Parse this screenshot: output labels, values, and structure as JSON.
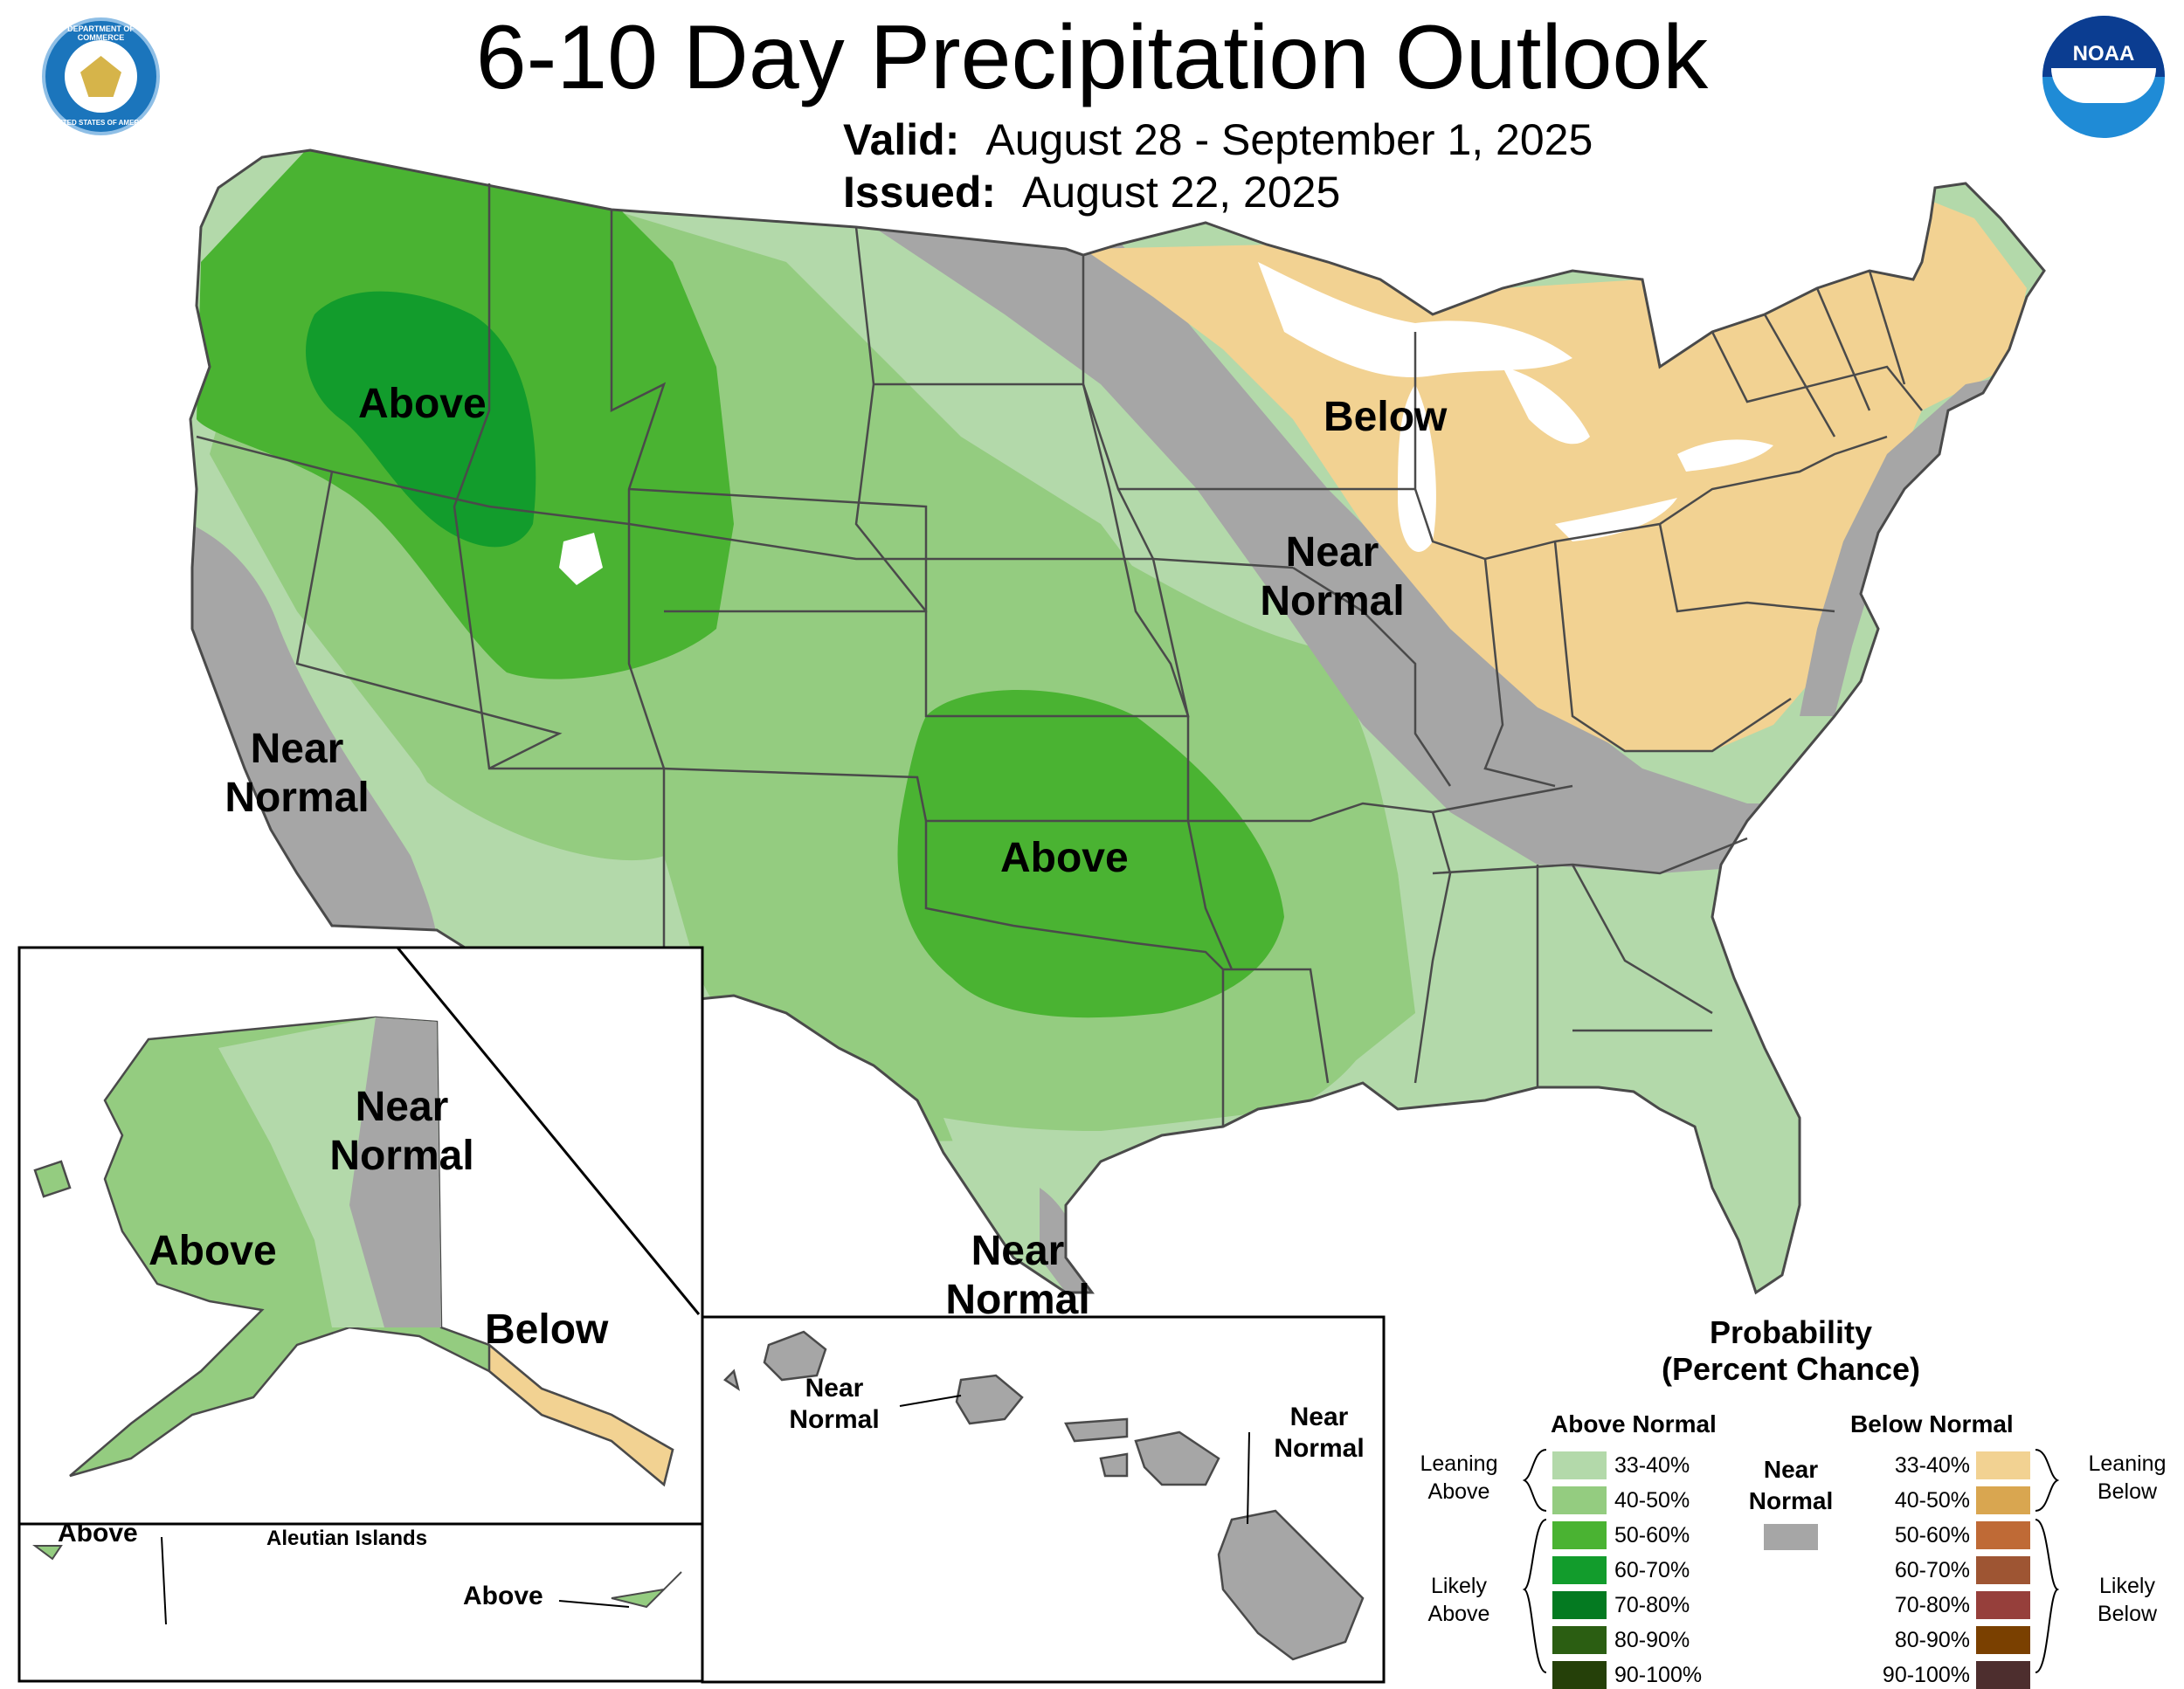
{
  "header": {
    "title": "6-10 Day Precipitation Outlook",
    "valid_label": "Valid:",
    "valid_value": "August 28 - September 1, 2025",
    "issued_label": "Issued:",
    "issued_value": "August 22, 2025"
  },
  "logos": {
    "commerce_icon": "department-of-commerce-seal",
    "commerce_text_top": "DEPARTMENT OF COMMERCE",
    "commerce_text_bottom": "UNITED STATES OF AMERICA",
    "noaa_icon": "noaa-logo",
    "noaa_text": "NOAA"
  },
  "labels": {
    "conus": {
      "above_nw": "Above",
      "above_south": "Above",
      "below_ne": "Below",
      "near_normal_mid_1": "Near",
      "near_normal_mid_2": "Normal",
      "near_normal_ca_1": "Near",
      "near_normal_ca_2": "Normal",
      "near_normal_tx_1": "Near",
      "near_normal_tx_2": "Normal"
    },
    "alaska": {
      "above": "Above",
      "near_normal_1": "Near",
      "near_normal_2": "Normal",
      "below": "Below"
    },
    "aleutians": {
      "title": "Aleutian Islands",
      "above_west": "Above",
      "above_east": "Above"
    },
    "hawaii": {
      "near_normal_w_1": "Near",
      "near_normal_w_2": "Normal",
      "near_normal_e_1": "Near",
      "near_normal_e_2": "Normal"
    }
  },
  "legend": {
    "title_1": "Probability",
    "title_2": "(Percent Chance)",
    "above_header": "Above Normal",
    "below_header": "Below Normal",
    "near_1": "Near",
    "near_2": "Normal",
    "near_color": "#a6a6a6",
    "leaning_above_1": "Leaning",
    "leaning_above_2": "Above",
    "likely_above_1": "Likely",
    "likely_above_2": "Above",
    "leaning_below_1": "Leaning",
    "leaning_below_2": "Below",
    "likely_below_1": "Likely",
    "likely_below_2": "Below",
    "above_bins": [
      {
        "label": "33-40%",
        "color": "#b3d9aa"
      },
      {
        "label": "40-50%",
        "color": "#94cc80"
      },
      {
        "label": "50-60%",
        "color": "#4ab332"
      },
      {
        "label": "60-70%",
        "color": "#129c2c"
      },
      {
        "label": "70-80%",
        "color": "#047a21"
      },
      {
        "label": "80-90%",
        "color": "#2b5e12"
      },
      {
        "label": "90-100%",
        "color": "#254009"
      }
    ],
    "below_bins": [
      {
        "label": "33-40%",
        "color": "#f2d292"
      },
      {
        "label": "40-50%",
        "color": "#d9a650"
      },
      {
        "label": "50-60%",
        "color": "#bf6a36"
      },
      {
        "label": "60-70%",
        "color": "#9e5533"
      },
      {
        "label": "70-80%",
        "color": "#963f3b"
      },
      {
        "label": "80-90%",
        "color": "#7a4000"
      },
      {
        "label": "90-100%",
        "color": "#4d2e2e"
      }
    ]
  }
}
